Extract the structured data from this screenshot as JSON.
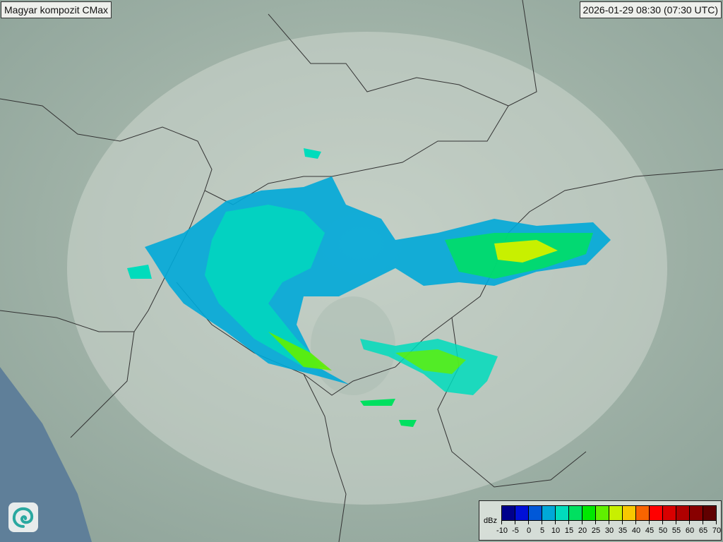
{
  "title": "Magyar kompozit  CMax",
  "timestamp": "2026-01-29 08:30 (07:30 UTC)",
  "legend": {
    "unit": "dBz",
    "ticks": [
      "-10",
      "-5",
      "0",
      "5",
      "10",
      "15",
      "20",
      "25",
      "30",
      "35",
      "40",
      "45",
      "50",
      "55",
      "60",
      "65",
      "70"
    ],
    "colors": [
      "#00008c",
      "#0010d8",
      "#0058d8",
      "#00a8d8",
      "#00dcbc",
      "#00e060",
      "#00e800",
      "#60f000",
      "#c8f000",
      "#f8c800",
      "#f86400",
      "#ff0000",
      "#d80000",
      "#b00000",
      "#880000",
      "#600000"
    ]
  },
  "logo": {
    "icon": "swirl-logo"
  }
}
